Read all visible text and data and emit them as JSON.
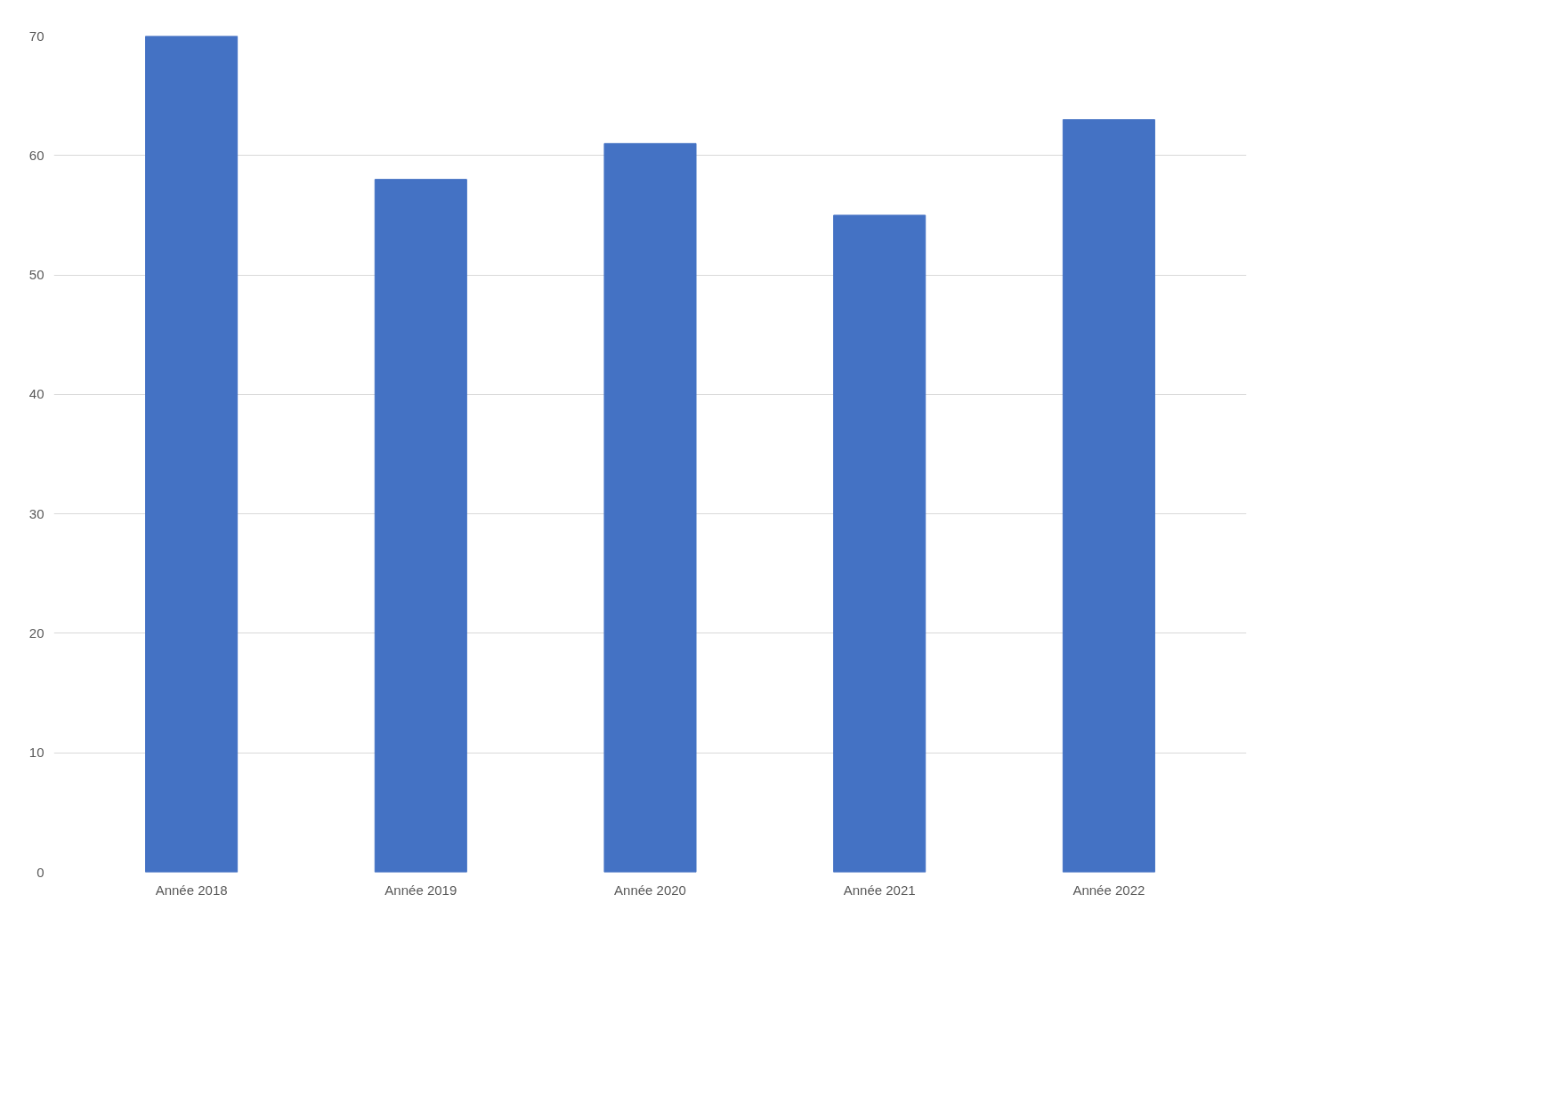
{
  "chart_data": {
    "type": "bar",
    "categories": [
      "Année 2018",
      "Année 2019",
      "Année 2020",
      "Année 2021",
      "Année 2022"
    ],
    "values": [
      70,
      58,
      61,
      55,
      63
    ],
    "color": "#4472c4",
    "ylim": [
      0,
      70
    ],
    "yticks": [
      0,
      10,
      20,
      30,
      40,
      50,
      60,
      70
    ],
    "grid": "y"
  }
}
